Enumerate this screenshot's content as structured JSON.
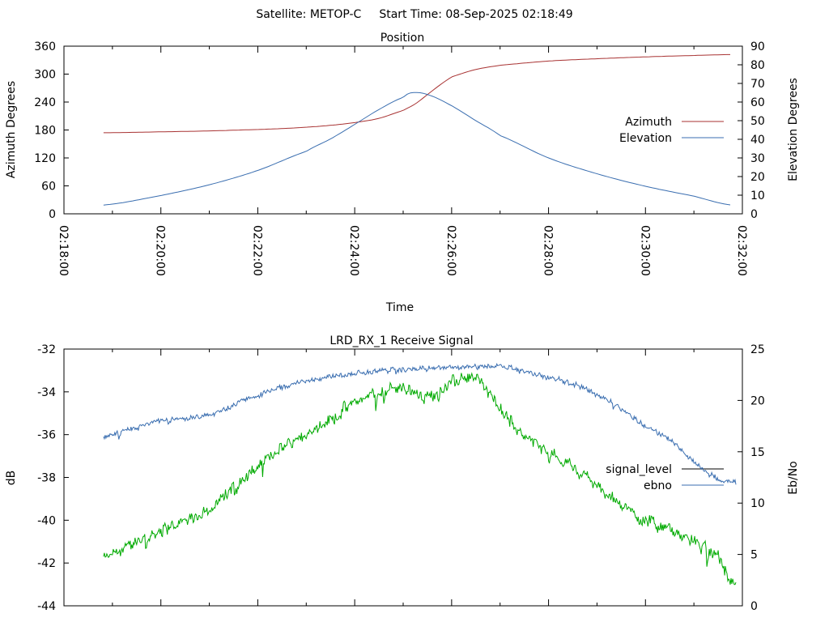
{
  "header": {
    "satellite_label": "Satellite: METOP-C",
    "start_time_label": "Start Time: 08-Sep-2025 02:18:49"
  },
  "chart_data": [
    {
      "type": "line",
      "title": "Position",
      "xlabel": "Time",
      "ylabel": "Azimuth Degrees",
      "y2label": "Elevation Degrees",
      "xlim": [
        "02:18:00",
        "02:32:00"
      ],
      "xticks": [
        "02:18:00",
        "02:20:00",
        "02:22:00",
        "02:24:00",
        "02:26:00",
        "02:28:00",
        "02:30:00",
        "02:32:00"
      ],
      "ylim": [
        0,
        360
      ],
      "yticks": [
        "0",
        "60",
        "120",
        "180",
        "240",
        "300",
        "360"
      ],
      "y2lim": [
        0,
        90
      ],
      "y2ticks": [
        "0",
        "10",
        "20",
        "30",
        "40",
        "50",
        "60",
        "70",
        "80",
        "90"
      ],
      "legend_position": "right",
      "series": [
        {
          "name": "Azimuth",
          "axis": "left",
          "color": "#a83232",
          "x": [
            "02:18:49",
            "02:20:00",
            "02:21:00",
            "02:22:00",
            "02:22:30",
            "02:23:00",
            "02:23:30",
            "02:24:00",
            "02:24:30",
            "02:25:00",
            "02:25:15",
            "02:25:30",
            "02:25:45",
            "02:26:00",
            "02:26:30",
            "02:27:00",
            "02:28:00",
            "02:29:00",
            "02:30:00",
            "02:31:00",
            "02:31:45"
          ],
          "values": [
            174,
            176,
            178,
            181,
            183,
            186,
            190,
            196,
            205,
            222,
            236,
            256,
            276,
            294,
            310,
            319,
            328,
            333,
            337,
            340,
            342
          ]
        },
        {
          "name": "Elevation",
          "axis": "right",
          "color": "#3a6eb0",
          "x": [
            "02:18:49",
            "02:20:00",
            "02:21:00",
            "02:22:00",
            "02:23:00",
            "02:23:30",
            "02:24:00",
            "02:24:30",
            "02:25:00",
            "02:25:10",
            "02:25:30",
            "02:26:00",
            "02:26:30",
            "02:27:00",
            "02:28:00",
            "02:29:00",
            "02:30:00",
            "02:31:00",
            "02:31:45"
          ],
          "values": [
            4.7,
            9.8,
            15.6,
            23.3,
            33.5,
            40.2,
            48.0,
            56.0,
            62.5,
            65.0,
            64.0,
            58.0,
            50.0,
            42.0,
            30.0,
            21.5,
            14.8,
            9.5,
            4.8
          ]
        }
      ]
    },
    {
      "type": "line",
      "title": "LRD_RX_1 Receive Signal",
      "ylabel": "dB",
      "y2label": "Eb/No",
      "ylim": [
        -44,
        -32
      ],
      "yticks": [
        "-44",
        "-42",
        "-40",
        "-38",
        "-36",
        "-34",
        "-32"
      ],
      "y2lim": [
        0,
        25
      ],
      "y2ticks": [
        "0",
        "5",
        "10",
        "15",
        "20",
        "25"
      ],
      "xlim": [
        "02:18:00",
        "02:32:00"
      ],
      "legend_position": "right",
      "series": [
        {
          "name": "signal_level",
          "axis": "left",
          "color": "#00aa00",
          "legend_color": "#000000",
          "x": [
            "02:18:49",
            "02:19:30",
            "02:20:00",
            "02:21:00",
            "02:21:30",
            "02:22:00",
            "02:22:30",
            "02:23:00",
            "02:23:30",
            "02:24:00",
            "02:24:30",
            "02:25:00",
            "02:25:30",
            "02:26:00",
            "02:26:30",
            "02:27:00",
            "02:27:30",
            "02:28:00",
            "02:28:30",
            "02:29:00",
            "02:29:30",
            "02:30:00",
            "02:30:30",
            "02:31:00",
            "02:31:30",
            "02:31:52"
          ],
          "values": [
            -41.8,
            -41.0,
            -40.5,
            -39.5,
            -38.5,
            -37.5,
            -36.6,
            -35.9,
            -35.3,
            -34.5,
            -34.0,
            -33.8,
            -34.2,
            -33.6,
            -33.4,
            -34.8,
            -36.0,
            -36.8,
            -37.5,
            -38.4,
            -39.3,
            -40.0,
            -40.5,
            -41.0,
            -41.8,
            -43.0
          ],
          "noise": 0.35
        },
        {
          "name": "ebno",
          "axis": "right",
          "color": "#3a6eb0",
          "x": [
            "02:18:49",
            "02:19:30",
            "02:20:00",
            "02:21:00",
            "02:21:30",
            "02:22:00",
            "02:22:30",
            "02:23:00",
            "02:23:30",
            "02:24:00",
            "02:24:30",
            "02:25:00",
            "02:25:30",
            "02:26:00",
            "02:26:30",
            "02:27:00",
            "02:27:30",
            "02:28:00",
            "02:28:30",
            "02:29:00",
            "02:29:30",
            "02:30:00",
            "02:30:30",
            "02:31:00",
            "02:31:30",
            "02:31:52"
          ],
          "values": [
            16.4,
            17.3,
            18.0,
            18.5,
            19.6,
            20.5,
            21.3,
            21.9,
            22.3,
            22.6,
            22.9,
            23.0,
            23.1,
            23.2,
            23.3,
            23.4,
            22.8,
            22.2,
            21.6,
            20.6,
            19.2,
            17.5,
            16.2,
            14.0,
            12.4,
            12.0
          ],
          "noise": 0.3
        }
      ]
    }
  ]
}
